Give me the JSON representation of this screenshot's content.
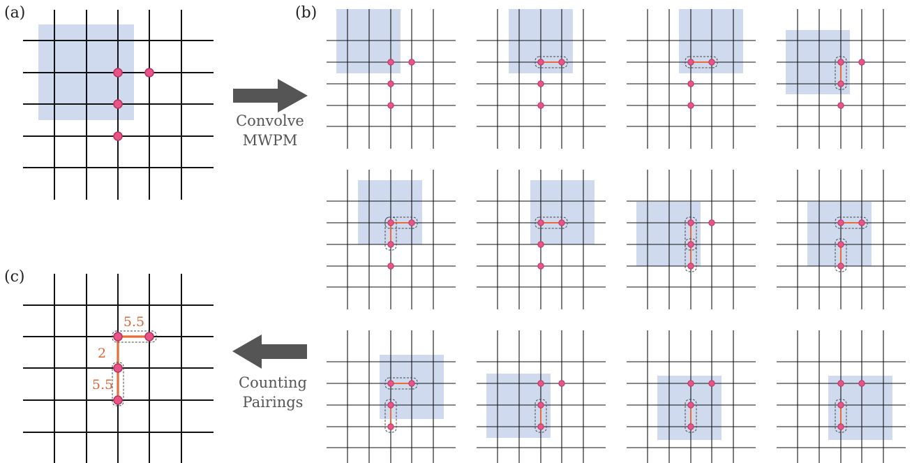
{
  "panels": {
    "a": {
      "label": "(a)"
    },
    "b": {
      "label": "(b)"
    },
    "c": {
      "label": "(c)"
    }
  },
  "captions": {
    "convolve": [
      "Convolve",
      "MWPM"
    ],
    "counting": [
      "Counting",
      "Pairings"
    ]
  },
  "weights": [
    "5.5",
    "2",
    "5.5"
  ],
  "colors": {
    "grid": "#111111",
    "window": "#cfdaee",
    "defect_fill": "#e95487",
    "defect_stroke": "#b3375f",
    "matching_edge": "#e86c3a",
    "arrow": "#555555",
    "dashed": "#444444"
  },
  "icons": {
    "arrow_right": "arrow-right-icon",
    "arrow_left": "arrow-left-icon"
  }
}
